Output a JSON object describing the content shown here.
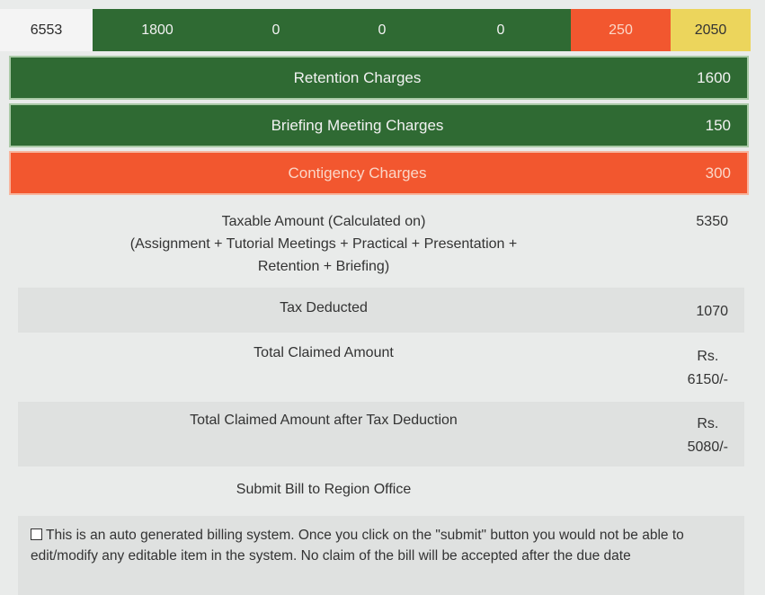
{
  "top_row": {
    "id": "6553",
    "values": [
      "1800",
      "0",
      "0",
      "0"
    ],
    "red_value": "250",
    "yellow_value": "2050"
  },
  "charges": [
    {
      "label": "Retention Charges",
      "value": "1600",
      "color": "#2f6a33"
    },
    {
      "label": "Briefing Meeting Charges",
      "value": "150",
      "color": "#2f6a33"
    },
    {
      "label": "Contigency Charges",
      "value": "300",
      "color": "#f2572f"
    }
  ],
  "taxable": {
    "label_line1": "Taxable Amount (Calculated on)",
    "label_line2": "(Assignment + Tutorial Meetings + Practical + Presentation +",
    "label_line3": "Retention + Briefing)",
    "value": "5350"
  },
  "tax_deducted": {
    "label": "Tax Deducted",
    "value": "1070"
  },
  "total_claimed": {
    "label": "Total Claimed Amount",
    "currency": "Rs.",
    "value": "6150/-"
  },
  "total_after_tax": {
    "label": "Total Claimed Amount after Tax Deduction",
    "currency": "Rs.",
    "value": "5080/-"
  },
  "submit_label": "Submit Bill to Region Office",
  "disclaimer": "This is an auto generated billing system. Once you click on the \"submit\" button you would not be able to edit/modify any editable item in the system. No claim of the bill will be accepted after the due date"
}
